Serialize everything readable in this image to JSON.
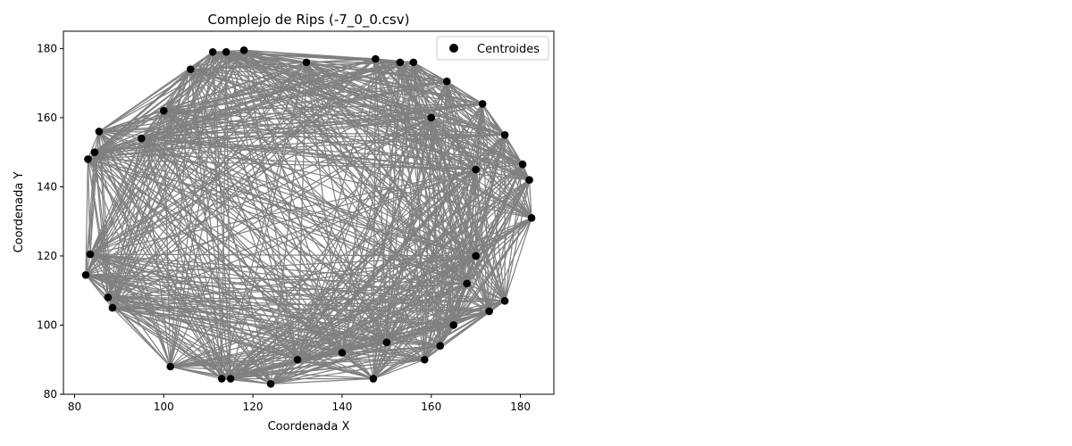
{
  "chart_data": {
    "type": "scatter",
    "title": "Complejo de Rips (-7_0_0.csv)",
    "xlabel": "Coordenada X",
    "ylabel": "Coordenada Y",
    "xlim": [
      77.5,
      187.5
    ],
    "ylim": [
      80,
      185
    ],
    "xticks": [
      80,
      100,
      120,
      140,
      160,
      180
    ],
    "yticks": [
      80,
      100,
      120,
      140,
      160,
      180
    ],
    "legend": {
      "position": "top-right",
      "entries": [
        "Centroides"
      ]
    },
    "grid": false,
    "colors": {
      "points": "#000000",
      "edges": "#808080"
    },
    "series": [
      {
        "name": "Centroides",
        "points": [
          [
            111,
            179
          ],
          [
            114,
            179
          ],
          [
            118,
            179.5
          ],
          [
            132,
            176
          ],
          [
            147.5,
            177
          ],
          [
            153,
            176
          ],
          [
            156,
            176
          ],
          [
            163.5,
            170.5
          ],
          [
            171.5,
            164
          ],
          [
            176.5,
            155
          ],
          [
            180.5,
            146.5
          ],
          [
            182,
            142
          ],
          [
            182.5,
            131
          ],
          [
            176.5,
            107
          ],
          [
            173,
            104
          ],
          [
            162,
            94
          ],
          [
            158.5,
            90
          ],
          [
            147,
            84.5
          ],
          [
            124,
            83
          ],
          [
            113,
            84.5
          ],
          [
            115,
            84.5
          ],
          [
            101.5,
            88
          ],
          [
            88.5,
            105
          ],
          [
            87.5,
            108
          ],
          [
            82.5,
            114.5
          ],
          [
            83.5,
            120.5
          ],
          [
            83,
            148
          ],
          [
            84.5,
            150
          ],
          [
            85.5,
            156
          ],
          [
            100,
            162
          ],
          [
            106,
            174
          ],
          [
            95,
            154
          ],
          [
            170,
            120
          ],
          [
            168,
            112
          ],
          [
            165,
            100
          ],
          [
            170,
            145
          ],
          [
            160,
            160
          ],
          [
            130,
            90
          ],
          [
            140,
            92
          ],
          [
            150,
            95
          ]
        ]
      }
    ]
  }
}
